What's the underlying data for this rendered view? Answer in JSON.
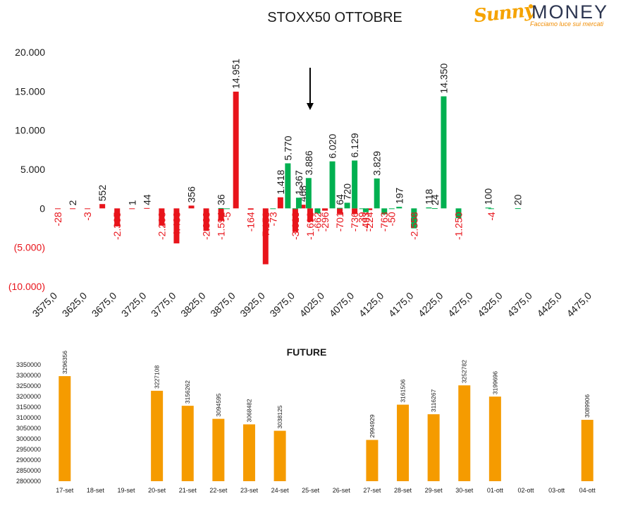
{
  "header": {
    "title": "STOXX50 OTTOBRE",
    "logo_word1": "Sunny",
    "logo_word2": "MONEY",
    "logo_tagline": "Facciamo luce sui mercati"
  },
  "colors": {
    "negative": "#e8141b",
    "positive": "#00b050",
    "future_bar": "#f59b00",
    "text": "#1a1a1a",
    "logo_orange": "#f5a300",
    "logo_navy": "#2c3550"
  },
  "chart_data": [
    {
      "type": "bar",
      "title": "STOXX50 OTTOBRE",
      "x_ticks": [
        "3575,0",
        "3625,0",
        "3675,0",
        "3725,0",
        "3775,0",
        "3825,0",
        "3875,0",
        "3925,0",
        "3975,0",
        "4025,0",
        "4075,0",
        "4125,0",
        "4175,0",
        "4225,0",
        "4275,0",
        "4325,0",
        "4375,0",
        "4425,0",
        "4475,0"
      ],
      "x_range": [
        3575,
        4475
      ],
      "ylim": [
        -10000,
        20000
      ],
      "y_ticks": [
        "(10.000)",
        "(5.000)",
        "0",
        "5.000",
        "10.000",
        "15.000",
        "20.000"
      ],
      "grid": false,
      "annotation": "arrow pointing down at strike 4000",
      "arrow_strike": 4000,
      "series": [
        {
          "key": "put",
          "color": "#e8141b",
          "points": [
            {
              "strike": 3575,
              "value": -28,
              "label": "-28"
            },
            {
              "strike": 3600,
              "value": 2,
              "label": "2"
            },
            {
              "strike": 3625,
              "value": -3,
              "label": "-3"
            },
            {
              "strike": 3650,
              "value": 552,
              "label": "552"
            },
            {
              "strike": 3675,
              "value": -2305,
              "label": "-2.305"
            },
            {
              "strike": 3700,
              "value": 1,
              "label": "1"
            },
            {
              "strike": 3725,
              "value": 44,
              "label": "44"
            },
            {
              "strike": 3750,
              "value": -2208,
              "label": "-2.208"
            },
            {
              "strike": 3775,
              "value": -4483,
              "label": "-4.483"
            },
            {
              "strike": 3800,
              "value": 356,
              "label": "356"
            },
            {
              "strike": 3825,
              "value": -2888,
              "label": "-2.888"
            },
            {
              "strike": 3850,
              "value": -1594,
              "label": "-1.594"
            },
            {
              "strike": 3875,
              "value": 14951,
              "label": "14.951"
            },
            {
              "strike": 3900,
              "value": -164,
              "label": "-164"
            },
            {
              "strike": 3925,
              "value": -7158,
              "label": "-7.158"
            },
            {
              "strike": 3950,
              "value": 1418,
              "label": "1.418"
            },
            {
              "strike": 3975,
              "value": -3003,
              "label": "-3.003"
            },
            {
              "strike": 3987.5,
              "value": 468,
              "label": "468"
            },
            {
              "strike": 4000,
              "value": -1698,
              "label": "-1.698"
            },
            {
              "strike": 4025,
              "value": -296,
              "label": "-296"
            },
            {
              "strike": 4050,
              "value": -701,
              "label": "-701"
            },
            {
              "strike": 4075,
              "value": -736,
              "label": "-736"
            },
            {
              "strike": 4100,
              "value": -224,
              "label": "-224"
            }
          ]
        },
        {
          "key": "call",
          "color": "#00b050",
          "points": [
            {
              "strike": 3850,
              "value": 36,
              "label": "36"
            },
            {
              "strike": 3860,
              "value": -5,
              "label": "-5"
            },
            {
              "strike": 3937.5,
              "value": -73,
              "label": "-73"
            },
            {
              "strike": 3962.5,
              "value": 5770,
              "label": "5.770"
            },
            {
              "strike": 3975,
              "value": -13,
              "label": "-13"
            },
            {
              "strike": 3981,
              "value": 1367,
              "label": "1.367"
            },
            {
              "strike": 3997.5,
              "value": 3886,
              "label": "3.886"
            },
            {
              "strike": 4012.5,
              "value": -662,
              "label": "-662"
            },
            {
              "strike": 4037.5,
              "value": 6020,
              "label": "6.020"
            },
            {
              "strike": 4050,
              "value": 64,
              "label": "64"
            },
            {
              "strike": 4062.5,
              "value": 720,
              "label": "720"
            },
            {
              "strike": 4075,
              "value": 6129,
              "label": "6.129"
            },
            {
              "strike": 4087.5,
              "value": -39,
              "label": "-39"
            },
            {
              "strike": 4093.75,
              "value": -493,
              "label": "-493"
            },
            {
              "strike": 4112.5,
              "value": 3829,
              "label": "3.829"
            },
            {
              "strike": 4125,
              "value": -763,
              "label": "-763"
            },
            {
              "strike": 4137.5,
              "value": -50,
              "label": "-50"
            },
            {
              "strike": 4150,
              "value": 197,
              "label": "197"
            },
            {
              "strike": 4175,
              "value": -2558,
              "label": "-2.558"
            },
            {
              "strike": 4200,
              "value": 118,
              "label": "118"
            },
            {
              "strike": 4210,
              "value": 24,
              "label": "24"
            },
            {
              "strike": 4225,
              "value": 14350,
              "label": "14.350"
            },
            {
              "strike": 4250,
              "value": -1250,
              "label": "-1.250"
            },
            {
              "strike": 4300,
              "value": 100,
              "label": "100"
            },
            {
              "strike": 4305,
              "value": -4,
              "label": "-4"
            },
            {
              "strike": 4350,
              "value": 20,
              "label": "20"
            }
          ]
        }
      ]
    },
    {
      "type": "bar",
      "title": "FUTURE",
      "categories": [
        "17-set",
        "18-set",
        "19-set",
        "20-set",
        "21-set",
        "22-set",
        "23-set",
        "24-set",
        "25-set",
        "26-set",
        "27-set",
        "28-set",
        "29-set",
        "30-set",
        "01-ott",
        "02-ott",
        "03-ott",
        "04-ott"
      ],
      "values": [
        3296356,
        null,
        null,
        3227108,
        3156262,
        3094595,
        3068482,
        3038125,
        null,
        null,
        2994929,
        3161506,
        3116267,
        3252782,
        3199696,
        null,
        null,
        3089906
      ],
      "ylim": [
        2800000,
        3350000
      ],
      "y_ticks": [
        "2800000",
        "2850000",
        "2900000",
        "2950000",
        "3000000",
        "3050000",
        "3100000",
        "3150000",
        "3200000",
        "3250000",
        "3300000",
        "3350000"
      ],
      "color": "#f59b00",
      "grid": false
    }
  ]
}
